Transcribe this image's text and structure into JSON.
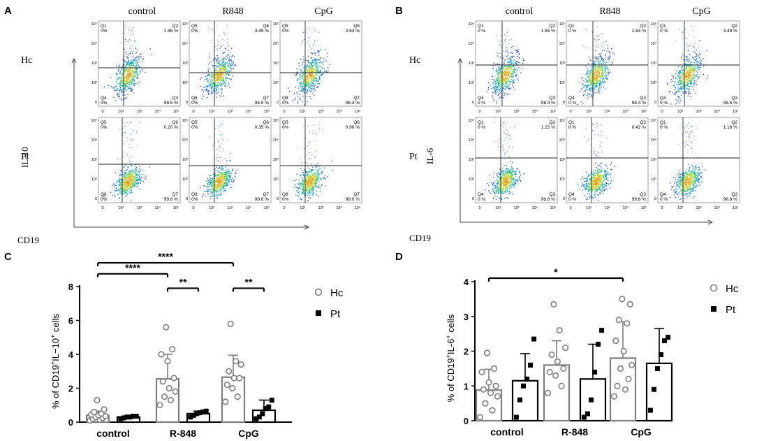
{
  "panels": {
    "A": {
      "letter": "A",
      "col_titles": [
        "control",
        "R848",
        "CpG"
      ],
      "row_labels": [
        "Hc",
        "Pt"
      ],
      "x_axis_label": "CD19",
      "y_axis_label": "IL-10",
      "plots": [
        [
          {
            "q1": "Q1",
            "q1v": "0%",
            "q2": "Q2",
            "q2v": "1.48 %",
            "q4": "Q4",
            "q4v": "0%",
            "q3": "Q3",
            "q3v": "98.5 %"
          },
          {
            "q1": "Q5",
            "q1v": "0%",
            "q2": "Q6",
            "q2v": "3.49 %",
            "q4": "Q8",
            "q4v": "0%",
            "q3": "Q7",
            "q3v": "96.5 %"
          },
          {
            "q1": "Q5",
            "q1v": "0%",
            "q2": "Q6",
            "q2v": "3.64 %",
            "q4": "Q8",
            "q4v": "0%",
            "q3": "Q7",
            "q3v": "96.4 %"
          }
        ],
        [
          {
            "q1": "Q5",
            "q1v": "0%",
            "q2": "Q6",
            "q2v": "0.20 %",
            "q4": "Q8",
            "q4v": "0%",
            "q3": "Q7",
            "q3v": "99.8 %"
          },
          {
            "q1": "Q5",
            "q1v": "0%",
            "q2": "Q6",
            "q2v": "0.35 %",
            "q4": "Q8",
            "q4v": "0%",
            "q3": "Q7",
            "q3v": "99.6 %"
          },
          {
            "q1": "Q5",
            "q1v": "0%",
            "q2": "Q6",
            "q2v": "0.96 %",
            "q4": "Q8",
            "q4v": "0%",
            "q3": "Q7",
            "q3v": "99.0 %"
          }
        ]
      ]
    },
    "B": {
      "letter": "B",
      "col_titles": [
        "control",
        "R848",
        "CpG"
      ],
      "row_labels": [
        "Hc",
        "Pt"
      ],
      "x_axis_label": "CD19",
      "y_axis_label": "IL-6",
      "plots": [
        [
          {
            "q1": "Q1",
            "q1v": "0 %",
            "q2": "Q2",
            "q2v": "1.55 %",
            "q4": "Q4",
            "q4v": "0 %",
            "q3": "Q3",
            "q3v": "98.4 %"
          },
          {
            "q1": "Q1",
            "q1v": "0 %",
            "q2": "Q2",
            "q2v": "1.63 %",
            "q4": "Q4",
            "q4v": "0 %",
            "q3": "Q3",
            "q3v": "98.4 %"
          },
          {
            "q1": "Q1",
            "q1v": "0 %",
            "q2": "Q2",
            "q2v": "3.48 %",
            "q4": "Q4",
            "q4v": "0 %",
            "q3": "Q3",
            "q3v": "96.5 %"
          }
        ],
        [
          {
            "q1": "Q1",
            "q1v": "0 %",
            "q2": "Q2",
            "q2v": "1.15 %",
            "q4": "Q4",
            "q4v": "0 %",
            "q3": "Q3",
            "q3v": "98.8 %"
          },
          {
            "q1": "Q1",
            "q1v": "0 %",
            "q2": "Q2",
            "q2v": "0.42 %",
            "q4": "Q4",
            "q4v": "0 %",
            "q3": "Q3",
            "q3v": "99.6 %"
          },
          {
            "q1": "Q1",
            "q1v": "0 %",
            "q2": "Q2",
            "q2v": "1.16 %",
            "q4": "Q4",
            "q4v": "0 %",
            "q3": "Q3",
            "q3v": "98.8 %"
          }
        ]
      ]
    },
    "C": {
      "letter": "C"
    },
    "D": {
      "letter": "D"
    }
  },
  "chart_data": [
    {
      "panel": "C",
      "type": "bar",
      "ylabel": "% of CD19+IL-10+ cells",
      "ylabel_parts": [
        "% of CD19",
        "+",
        "IL−10",
        "+",
        " cells"
      ],
      "ylim": [
        0,
        8
      ],
      "yticks": [
        "0",
        "2",
        "4",
        "6",
        "8"
      ],
      "categories": [
        "control",
        "R-848",
        "CpG"
      ],
      "series": [
        {
          "name": "Hc",
          "means": [
            0.4,
            2.55,
            2.65
          ],
          "sd": [
            0.25,
            1.45,
            1.3
          ],
          "points": [
            [
              0.1,
              0.15,
              0.2,
              0.25,
              0.3,
              0.35,
              0.4,
              0.45,
              0.5,
              0.6,
              0.75,
              1.3
            ],
            [
              1.0,
              1.3,
              1.5,
              1.8,
              2.0,
              2.4,
              2.6,
              3.6,
              4.0,
              4.3,
              5.6
            ],
            [
              1.2,
              1.5,
              2.0,
              2.2,
              2.6,
              2.6,
              3.0,
              3.4,
              3.6,
              5.8
            ]
          ]
        },
        {
          "name": "Pt",
          "means": [
            0.3,
            0.5,
            0.7
          ],
          "sd": [
            0.05,
            0.15,
            0.6
          ],
          "points": [
            [
              0.2,
              0.25,
              0.3,
              0.3,
              0.35,
              0.35
            ],
            [
              0.3,
              0.4,
              0.5,
              0.55,
              0.6,
              0.65
            ],
            [
              0.2,
              0.3,
              0.5,
              0.8,
              0.9,
              1.3
            ]
          ]
        }
      ],
      "legend": [
        "Hc",
        "Pt"
      ],
      "significance": [
        {
          "from": [
            "control",
            "Hc"
          ],
          "to": [
            "CpG",
            "Hc"
          ],
          "label": "****",
          "y": 9.4
        },
        {
          "from": [
            "control",
            "Hc"
          ],
          "to": [
            "R-848",
            "Hc"
          ],
          "label": "****",
          "y": 8.75
        },
        {
          "from": [
            "R-848",
            "Hc"
          ],
          "to": [
            "R-848",
            "Pt"
          ],
          "label": "**",
          "y": 7.9
        },
        {
          "from": [
            "CpG",
            "Hc"
          ],
          "to": [
            "CpG",
            "Pt"
          ],
          "label": "**",
          "y": 7.9
        }
      ]
    },
    {
      "panel": "D",
      "type": "bar",
      "ylabel": "% of CD19+IL-6+ cells",
      "ylabel_parts": [
        "% of CD19",
        "+",
        "IL-6",
        "+",
        " cells"
      ],
      "ylim": [
        0,
        4
      ],
      "yticks": [
        "0",
        "1",
        "2",
        "3",
        "4"
      ],
      "categories": [
        "control",
        "R-848",
        "CpG"
      ],
      "series": [
        {
          "name": "Hc",
          "means": [
            0.88,
            1.6,
            1.8
          ],
          "sd": [
            0.6,
            0.7,
            1.05
          ],
          "points": [
            [
              0.1,
              0.3,
              0.5,
              0.7,
              0.8,
              0.9,
              1.0,
              1.1,
              1.4,
              1.5,
              1.95
            ],
            [
              0.8,
              1.0,
              1.3,
              1.4,
              1.5,
              1.7,
              1.9,
              2.1,
              2.6,
              3.35
            ],
            [
              0.7,
              0.9,
              1.0,
              1.2,
              1.5,
              1.6,
              2.0,
              2.3,
              2.8,
              2.9,
              3.35,
              3.5
            ]
          ]
        },
        {
          "name": "Pt",
          "means": [
            1.15,
            1.2,
            1.65
          ],
          "sd": [
            0.78,
            1.0,
            1.0
          ],
          "points": [
            [
              0.1,
              0.6,
              1.0,
              1.2,
              1.6,
              2.35
            ],
            [
              0.1,
              0.2,
              0.6,
              1.4,
              2.2,
              2.6
            ],
            [
              0.3,
              0.9,
              1.5,
              1.9,
              2.3,
              2.4
            ]
          ]
        }
      ],
      "legend": [
        "Hc",
        "Pt"
      ],
      "significance": [
        {
          "from": [
            "control",
            "Hc"
          ],
          "to": [
            "CpG",
            "Hc"
          ],
          "label": "*",
          "y": 4.1
        }
      ]
    }
  ]
}
